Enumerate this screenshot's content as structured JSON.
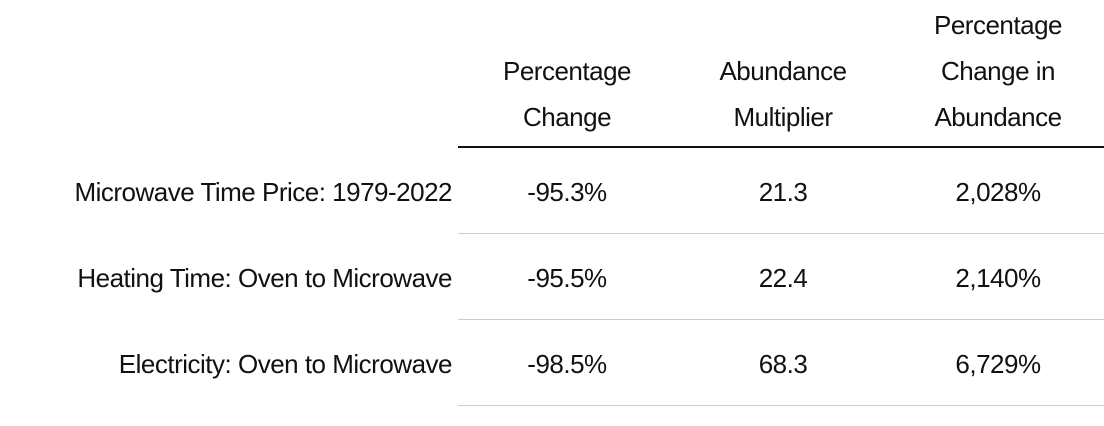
{
  "table": {
    "headers": [
      "Percentage Change",
      "Abundance Multiplier",
      "Percentage Change in Abundance"
    ],
    "rows": [
      [
        "Microwave Time Price: 1979-2022",
        "-95.3%",
        "21.3",
        "2,028%"
      ],
      [
        "Heating Time: Oven to Microwave",
        "-95.5%",
        "22.4",
        "2,140%"
      ],
      [
        "Electricity: Oven to Microwave",
        "-98.5%",
        "68.3",
        "6,729%"
      ]
    ]
  }
}
